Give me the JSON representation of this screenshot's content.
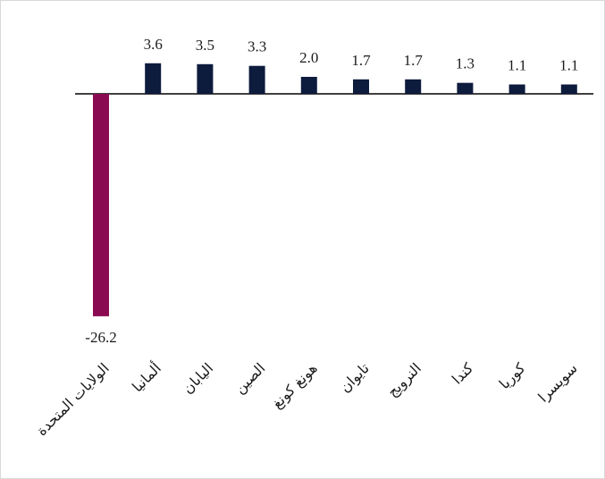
{
  "chart_data": {
    "type": "bar",
    "title": "",
    "xlabel": "",
    "ylabel": "",
    "categories": [
      "الولايات المتحدة",
      "ألمانيا",
      "اليابان",
      "الصين",
      "هونغ كونغ",
      "تايوان",
      "النرويج",
      "كندا",
      "كوريا",
      "سويسرا"
    ],
    "values": [
      -26.2,
      3.6,
      3.5,
      3.3,
      2.0,
      1.7,
      1.7,
      1.3,
      1.1,
      1.1
    ],
    "value_labels": [
      "-26.2",
      "3.6",
      "3.5",
      "3.3",
      "2.0",
      "1.7",
      "1.7",
      "1.3",
      "1.1",
      "1.1"
    ],
    "ylim": [
      -26.2,
      3.6
    ],
    "grid": false,
    "legend": "none",
    "colors": {
      "negative": "#8a0a52",
      "positive": "#0d1b3d",
      "axis": "#000000"
    }
  }
}
